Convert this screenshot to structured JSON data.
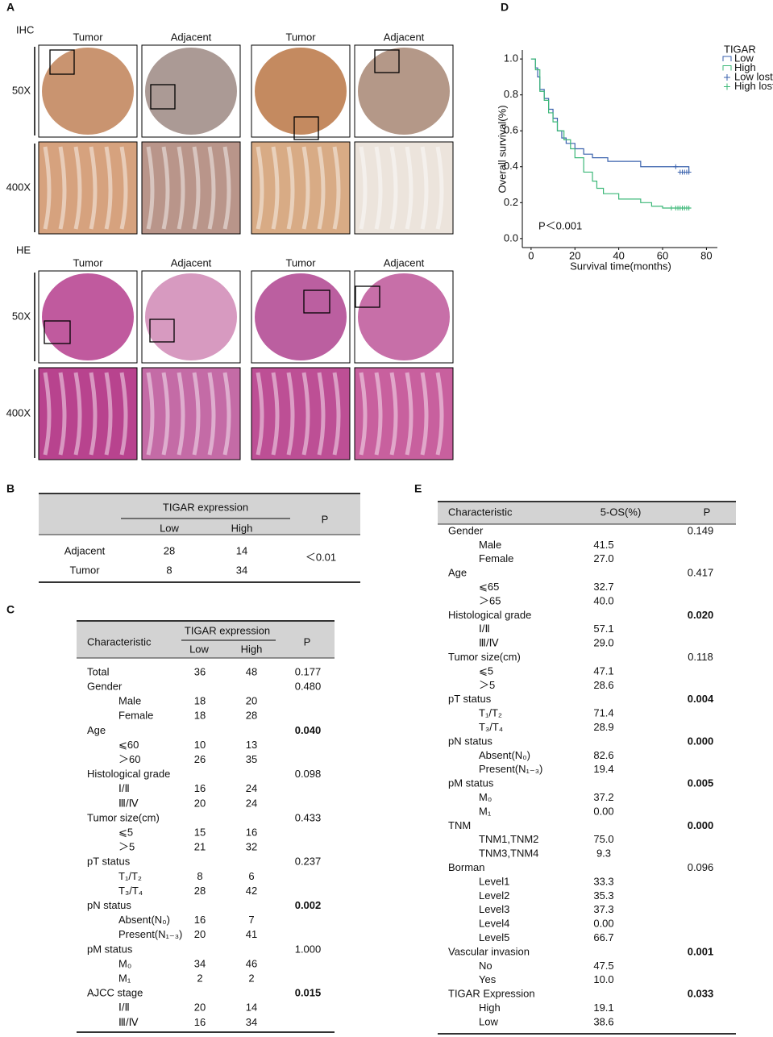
{
  "panel_labels": [
    "A",
    "B",
    "C",
    "D",
    "E"
  ],
  "panel_a": {
    "ihc": {
      "label": "IHC",
      "columns": [
        "Tumor",
        "Adjacent",
        "Tumor",
        "Adjacent"
      ],
      "rows": [
        "50X",
        "400X"
      ]
    },
    "he": {
      "label": "HE",
      "columns": [
        "Tumor",
        "Adjacent",
        "Tumor",
        "Adjacent"
      ],
      "rows": [
        "50X",
        "400X"
      ]
    }
  },
  "panel_b": {
    "header": {
      "group": "TIGAR expression",
      "low": "Low",
      "high": "High",
      "p": "P"
    },
    "rows": [
      {
        "label": "Adjacent",
        "low": "28",
        "high": "14"
      },
      {
        "label": "Tumor",
        "low": "8",
        "high": "34"
      }
    ],
    "p": "＜0.01"
  },
  "panel_c": {
    "header": {
      "characteristic": "Characteristic",
      "group": "TIGAR expression",
      "low": "Low",
      "high": "High",
      "p": "P"
    },
    "rows": [
      {
        "group": "Total",
        "low": "36",
        "high": "48",
        "p": "0.177"
      },
      {
        "group": "Gender",
        "p": "0.480"
      },
      {
        "item": "Male",
        "low": "18",
        "high": "20"
      },
      {
        "item": "Female",
        "low": "18",
        "high": "28"
      },
      {
        "group": "Age",
        "p": "0.040",
        "p_bold": true
      },
      {
        "item": "⩽60",
        "low": "10",
        "high": "13"
      },
      {
        "item": "＞60",
        "low": "26",
        "high": "35"
      },
      {
        "group": "Histological grade",
        "p": "0.098"
      },
      {
        "item": "Ⅰ/Ⅱ",
        "low": "16",
        "high": "24"
      },
      {
        "item": "Ⅲ/Ⅳ",
        "low": "20",
        "high": "24"
      },
      {
        "group": "Tumor size(cm)",
        "p": "0.433"
      },
      {
        "item": "⩽5",
        "low": "15",
        "high": "16"
      },
      {
        "item": "＞5",
        "low": "21",
        "high": "32"
      },
      {
        "group": "pT status",
        "p": "0.237"
      },
      {
        "item": "T₁/T₂",
        "low": "8",
        "high": "6"
      },
      {
        "item": "T₃/T₄",
        "low": "28",
        "high": "42"
      },
      {
        "group": "pN status",
        "p": "0.002",
        "p_bold": true
      },
      {
        "item": "Absent(N₀)",
        "low": "16",
        "high": "7"
      },
      {
        "item": "Present(N₁₋₃)",
        "low": "20",
        "high": "41"
      },
      {
        "group": "pM status",
        "p": "1.000"
      },
      {
        "item": "M₀",
        "low": "34",
        "high": "46"
      },
      {
        "item": "M₁",
        "low": "2",
        "high": "2"
      },
      {
        "group": "AJCC stage",
        "p": "0.015",
        "p_bold": true
      },
      {
        "item": "Ⅰ/Ⅱ",
        "low": "20",
        "high": "14"
      },
      {
        "item": "Ⅲ/Ⅳ",
        "low": "16",
        "high": "34"
      }
    ]
  },
  "panel_d": {
    "chart_data": {
      "type": "line",
      "step": true,
      "x_label": "Survival time(months)",
      "y_label": "Overall survival(%)",
      "annotation": "P＜0.001",
      "legend_title": "TIGAR",
      "legend": "right",
      "xlim": [
        -4,
        85
      ],
      "ylim": [
        -0.05,
        1.05
      ],
      "xticks": [
        0,
        20,
        40,
        60,
        80
      ],
      "yticks": [
        {
          "value": 0,
          "label": "0.0"
        },
        0.2,
        0.4,
        0.6,
        0.8,
        {
          "value": 1,
          "label": "1.0"
        }
      ],
      "series": [
        {
          "name": "Low",
          "color": "#3a62ad",
          "mode": "lines",
          "x": [
            0,
            2,
            3,
            4,
            6,
            8,
            10,
            12,
            14,
            16,
            20,
            24,
            28,
            35,
            50,
            72
          ],
          "values": [
            1.0,
            0.95,
            0.9,
            0.83,
            0.78,
            0.72,
            0.67,
            0.6,
            0.56,
            0.53,
            0.5,
            0.47,
            0.45,
            0.43,
            0.4,
            0.37
          ]
        },
        {
          "name": "High",
          "color": "#3cb878",
          "mode": "lines",
          "x": [
            0,
            2,
            4,
            6,
            8,
            10,
            12,
            15,
            18,
            20,
            24,
            28,
            30,
            33,
            40,
            50,
            55,
            60,
            73
          ],
          "values": [
            1.0,
            0.94,
            0.82,
            0.77,
            0.7,
            0.65,
            0.6,
            0.55,
            0.5,
            0.45,
            0.37,
            0.32,
            0.28,
            0.25,
            0.22,
            0.2,
            0.18,
            0.17,
            0.17
          ]
        },
        {
          "name": "Low lost",
          "color": "#3a62ad",
          "mode": "markers",
          "x": [
            66,
            68,
            69,
            70,
            71,
            72
          ],
          "values": [
            0.4,
            0.37,
            0.37,
            0.37,
            0.37,
            0.37
          ]
        },
        {
          "name": "High lost",
          "color": "#3cb878",
          "mode": "markers",
          "x": [
            64,
            66,
            67,
            68,
            69,
            70,
            71,
            72
          ],
          "values": [
            0.17,
            0.17,
            0.17,
            0.17,
            0.17,
            0.17,
            0.17,
            0.17
          ]
        }
      ]
    }
  },
  "panel_e": {
    "header": {
      "characteristic": "Characteristic",
      "os": "5-OS(%)",
      "p": "P"
    },
    "rows": [
      {
        "group": "Gender",
        "p": "0.149"
      },
      {
        "item": "Male",
        "os": "41.5"
      },
      {
        "item": "Female",
        "os": "27.0"
      },
      {
        "group": "Age",
        "p": "0.417"
      },
      {
        "item": "⩽65",
        "os": "32.7"
      },
      {
        "item": "＞65",
        "os": "40.0"
      },
      {
        "group": "Histological grade",
        "p": "0.020",
        "p_bold": true
      },
      {
        "item": "Ⅰ/Ⅱ",
        "os": "57.1"
      },
      {
        "item": "Ⅲ/Ⅳ",
        "os": "29.0"
      },
      {
        "group": "Tumor size(cm)",
        "p": "0.118"
      },
      {
        "item": "⩽5",
        "os": "47.1"
      },
      {
        "item": "＞5",
        "os": "28.6"
      },
      {
        "group": "pT status",
        "p": "0.004",
        "p_bold": true
      },
      {
        "item": "T₁/T₂",
        "os": "71.4"
      },
      {
        "item": "T₃/T₄",
        "os": "28.9"
      },
      {
        "group": "pN status",
        "p": "0.000",
        "p_bold": true
      },
      {
        "item": "Absent(N₀)",
        "os": "82.6"
      },
      {
        "item": "Present(N₁₋₃)",
        "os": "19.4"
      },
      {
        "group": "pM status",
        "p": "0.005",
        "p_bold": true
      },
      {
        "item": "M₀",
        "os": "37.2"
      },
      {
        "item": "M₁",
        "os": "0.00"
      },
      {
        "group": "TNM",
        "p": "0.000",
        "p_bold": true
      },
      {
        "item": "TNM1,TNM2",
        "os": "75.0"
      },
      {
        "item": "TNM3,TNM4",
        "os": "9.3"
      },
      {
        "group": "Borman",
        "p": "0.096"
      },
      {
        "item": "Level1",
        "os": "33.3"
      },
      {
        "item": "Level2",
        "os": "35.3"
      },
      {
        "item": "Level3",
        "os": "37.3"
      },
      {
        "item": "Level4",
        "os": "0.00"
      },
      {
        "item": "Level5",
        "os": "66.7"
      },
      {
        "group": "Vascular invasion",
        "p": "0.001",
        "p_bold": true
      },
      {
        "item": "No",
        "os": "47.5"
      },
      {
        "item": "Yes",
        "os": "10.0"
      },
      {
        "group": "TIGAR Expression",
        "p": "0.033",
        "p_bold": true
      },
      {
        "item": "High",
        "os": "19.1"
      },
      {
        "item": "Low",
        "os": "38.6"
      }
    ]
  }
}
